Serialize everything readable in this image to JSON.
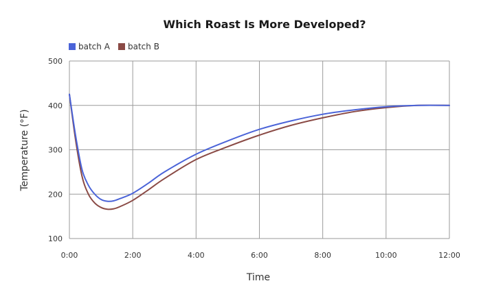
{
  "chart_data": {
    "type": "line",
    "title": "Which Roast Is More Developed?",
    "xlabel": "Time",
    "ylabel": "Temperature (°F)",
    "xlim": [
      0,
      12
    ],
    "ylim": [
      100,
      500
    ],
    "x_ticks": [
      0,
      2,
      4,
      6,
      8,
      10,
      12
    ],
    "x_tick_labels": [
      "0:00",
      "2:00",
      "4:00",
      "6:00",
      "8:00",
      "10:00",
      "12:00"
    ],
    "y_ticks": [
      100,
      200,
      300,
      400,
      500
    ],
    "y_tick_labels": [
      "100",
      "200",
      "300",
      "400",
      "500"
    ],
    "grid": true,
    "legend_position": "top-left",
    "series": [
      {
        "name": "batch A",
        "color": "#4a63d8",
        "x": [
          0,
          0.2,
          0.4,
          0.6,
          0.8,
          1.0,
          1.2,
          1.4,
          1.6,
          2.0,
          2.5,
          3.0,
          4.0,
          5.0,
          6.0,
          7.0,
          8.0,
          9.0,
          10.0,
          11.0,
          12.0
        ],
        "y": [
          425,
          330,
          255,
          220,
          200,
          188,
          184,
          185,
          190,
          202,
          225,
          250,
          290,
          320,
          346,
          365,
          380,
          390,
          397,
          400,
          400
        ]
      },
      {
        "name": "batch B",
        "color": "#8a4a45",
        "x": [
          0,
          0.2,
          0.4,
          0.6,
          0.8,
          1.0,
          1.2,
          1.4,
          1.6,
          2.0,
          2.5,
          3.0,
          4.0,
          5.0,
          6.0,
          7.0,
          8.0,
          9.0,
          10.0,
          11.0,
          12.0
        ],
        "y": [
          425,
          320,
          240,
          200,
          180,
          170,
          166,
          167,
          172,
          186,
          210,
          235,
          278,
          307,
          333,
          355,
          372,
          386,
          395,
          400,
          400
        ]
      }
    ]
  }
}
